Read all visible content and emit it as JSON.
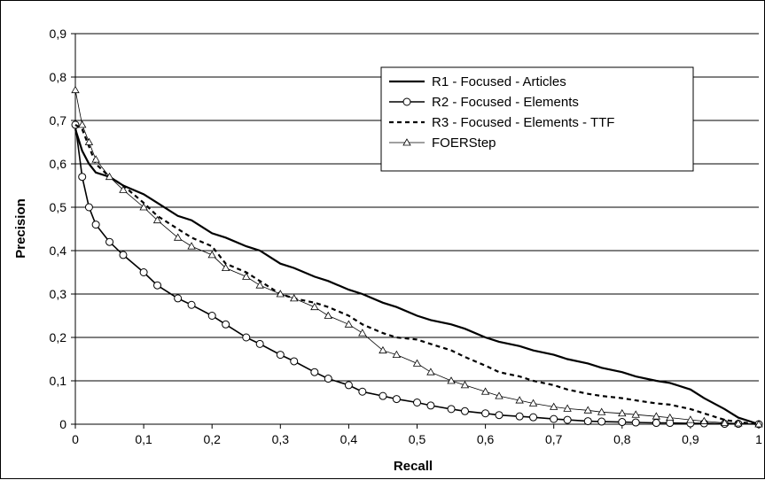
{
  "chart_data": {
    "type": "line",
    "title": "",
    "xlabel": "Recall",
    "ylabel": "Precision",
    "xlim": [
      0,
      1
    ],
    "ylim": [
      0,
      0.9
    ],
    "x_ticks": [
      "0",
      "0,1",
      "0,2",
      "0,3",
      "0,4",
      "0,5",
      "0,6",
      "0,7",
      "0,8",
      "0,9",
      "1"
    ],
    "y_ticks": [
      "0",
      "0,1",
      "0,2",
      "0,3",
      "0,4",
      "0,5",
      "0,6",
      "0,7",
      "0,8",
      "0,9"
    ],
    "grid": "horizontal",
    "legend_position": "top-right",
    "x": [
      0,
      0.01,
      0.02,
      0.03,
      0.05,
      0.07,
      0.1,
      0.12,
      0.15,
      0.17,
      0.2,
      0.22,
      0.25,
      0.27,
      0.3,
      0.32,
      0.35,
      0.37,
      0.4,
      0.42,
      0.45,
      0.47,
      0.5,
      0.52,
      0.55,
      0.57,
      0.6,
      0.62,
      0.65,
      0.67,
      0.7,
      0.72,
      0.75,
      0.77,
      0.8,
      0.82,
      0.85,
      0.87,
      0.9,
      0.92,
      0.95,
      0.97,
      1.0
    ],
    "series": [
      {
        "name": "R1 - Focused - Articles",
        "style": "solid-thick",
        "values": [
          0.68,
          0.63,
          0.6,
          0.58,
          0.57,
          0.55,
          0.53,
          0.51,
          0.48,
          0.47,
          0.44,
          0.43,
          0.41,
          0.4,
          0.37,
          0.36,
          0.34,
          0.33,
          0.31,
          0.3,
          0.28,
          0.27,
          0.25,
          0.24,
          0.23,
          0.22,
          0.2,
          0.19,
          0.18,
          0.17,
          0.16,
          0.15,
          0.14,
          0.13,
          0.12,
          0.11,
          0.1,
          0.095,
          0.08,
          0.06,
          0.035,
          0.015,
          0.0
        ]
      },
      {
        "name": "R2 - Focused - Elements",
        "style": "solid-circle",
        "values": [
          0.69,
          0.57,
          0.5,
          0.46,
          0.42,
          0.39,
          0.35,
          0.32,
          0.29,
          0.275,
          0.25,
          0.23,
          0.2,
          0.185,
          0.16,
          0.145,
          0.12,
          0.105,
          0.09,
          0.075,
          0.065,
          0.058,
          0.05,
          0.043,
          0.035,
          0.03,
          0.025,
          0.021,
          0.018,
          0.016,
          0.012,
          0.01,
          0.007,
          0.006,
          0.005,
          0.004,
          0.003,
          0.003,
          0.002,
          0.002,
          0.001,
          0.001,
          0.0
        ]
      },
      {
        "name": "R3 - Focused - Elements - TTF",
        "style": "dashed",
        "values": [
          0.69,
          0.68,
          0.64,
          0.6,
          0.57,
          0.55,
          0.51,
          0.48,
          0.45,
          0.43,
          0.41,
          0.37,
          0.35,
          0.33,
          0.3,
          0.29,
          0.28,
          0.27,
          0.25,
          0.23,
          0.21,
          0.2,
          0.195,
          0.185,
          0.17,
          0.155,
          0.135,
          0.12,
          0.11,
          0.1,
          0.09,
          0.08,
          0.07,
          0.065,
          0.06,
          0.055,
          0.048,
          0.045,
          0.035,
          0.025,
          0.01,
          0.005,
          0.0
        ]
      },
      {
        "name": "FOERStep",
        "style": "thin-triangle",
        "values": [
          0.77,
          0.69,
          0.65,
          0.61,
          0.57,
          0.54,
          0.5,
          0.47,
          0.43,
          0.41,
          0.39,
          0.36,
          0.34,
          0.32,
          0.3,
          0.29,
          0.27,
          0.25,
          0.23,
          0.21,
          0.17,
          0.16,
          0.14,
          0.12,
          0.1,
          0.09,
          0.075,
          0.065,
          0.055,
          0.048,
          0.04,
          0.036,
          0.032,
          0.028,
          0.025,
          0.022,
          0.018,
          0.015,
          0.01,
          0.007,
          0.003,
          0.002,
          0.0
        ]
      }
    ]
  }
}
